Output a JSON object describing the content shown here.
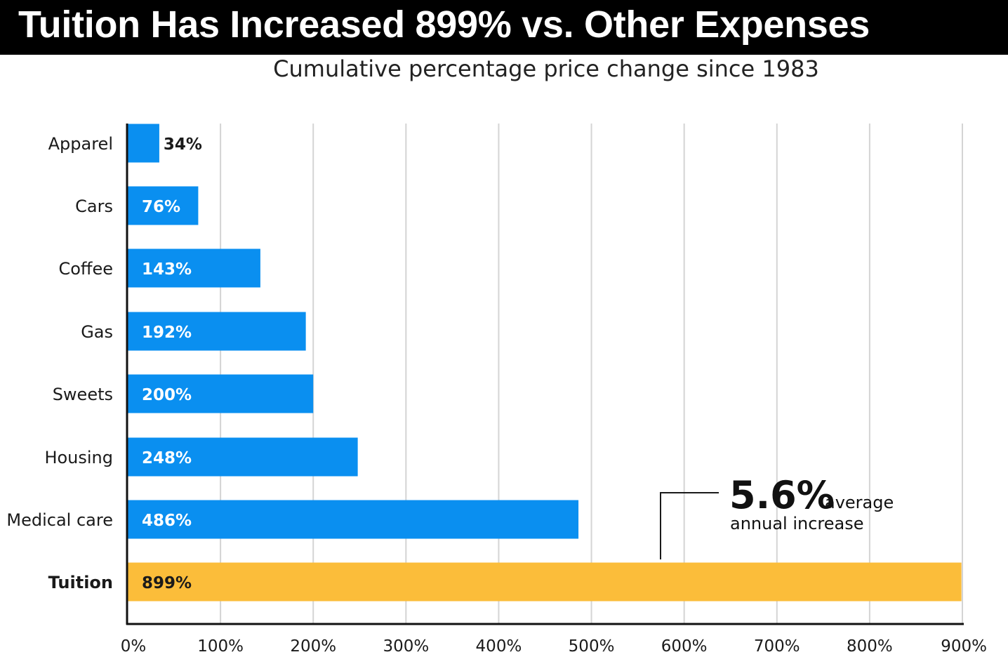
{
  "title": "Tuition Has Increased 899% vs. Other Expenses",
  "subtitle": "Cumulative percentage price change since 1983",
  "colors": {
    "bar": "#0a8ff0",
    "highlight_bar": "#fbbd3a",
    "grid": "#d4d4d4",
    "axis": "#111111",
    "title_bar": "#000000"
  },
  "annotation": {
    "big": "5.6%",
    "line1": "average",
    "line2": "annual increase"
  },
  "chart_data": {
    "type": "bar",
    "orientation": "horizontal",
    "title": "Tuition Has Increased 899% vs. Other Expenses",
    "subtitle": "Cumulative percentage price change since 1983",
    "xlabel": "",
    "ylabel": "",
    "xlim": [
      0,
      900
    ],
    "grid": true,
    "categories": [
      "Apparel",
      "Cars",
      "Coffee",
      "Gas",
      "Sweets",
      "Housing",
      "Medical care",
      "Tuition"
    ],
    "values": [
      34,
      76,
      143,
      192,
      200,
      248,
      486,
      899
    ],
    "data_labels": [
      "34%",
      "76%",
      "143%",
      "192%",
      "200%",
      "248%",
      "486%",
      "899%"
    ],
    "highlight": "Tuition",
    "x_ticks": [
      0,
      100,
      200,
      300,
      400,
      500,
      600,
      700,
      800,
      900
    ],
    "x_tick_labels": [
      "0%",
      "100%",
      "200%",
      "300%",
      "400%",
      "500%",
      "600%",
      "700%",
      "800%",
      "900%"
    ]
  }
}
